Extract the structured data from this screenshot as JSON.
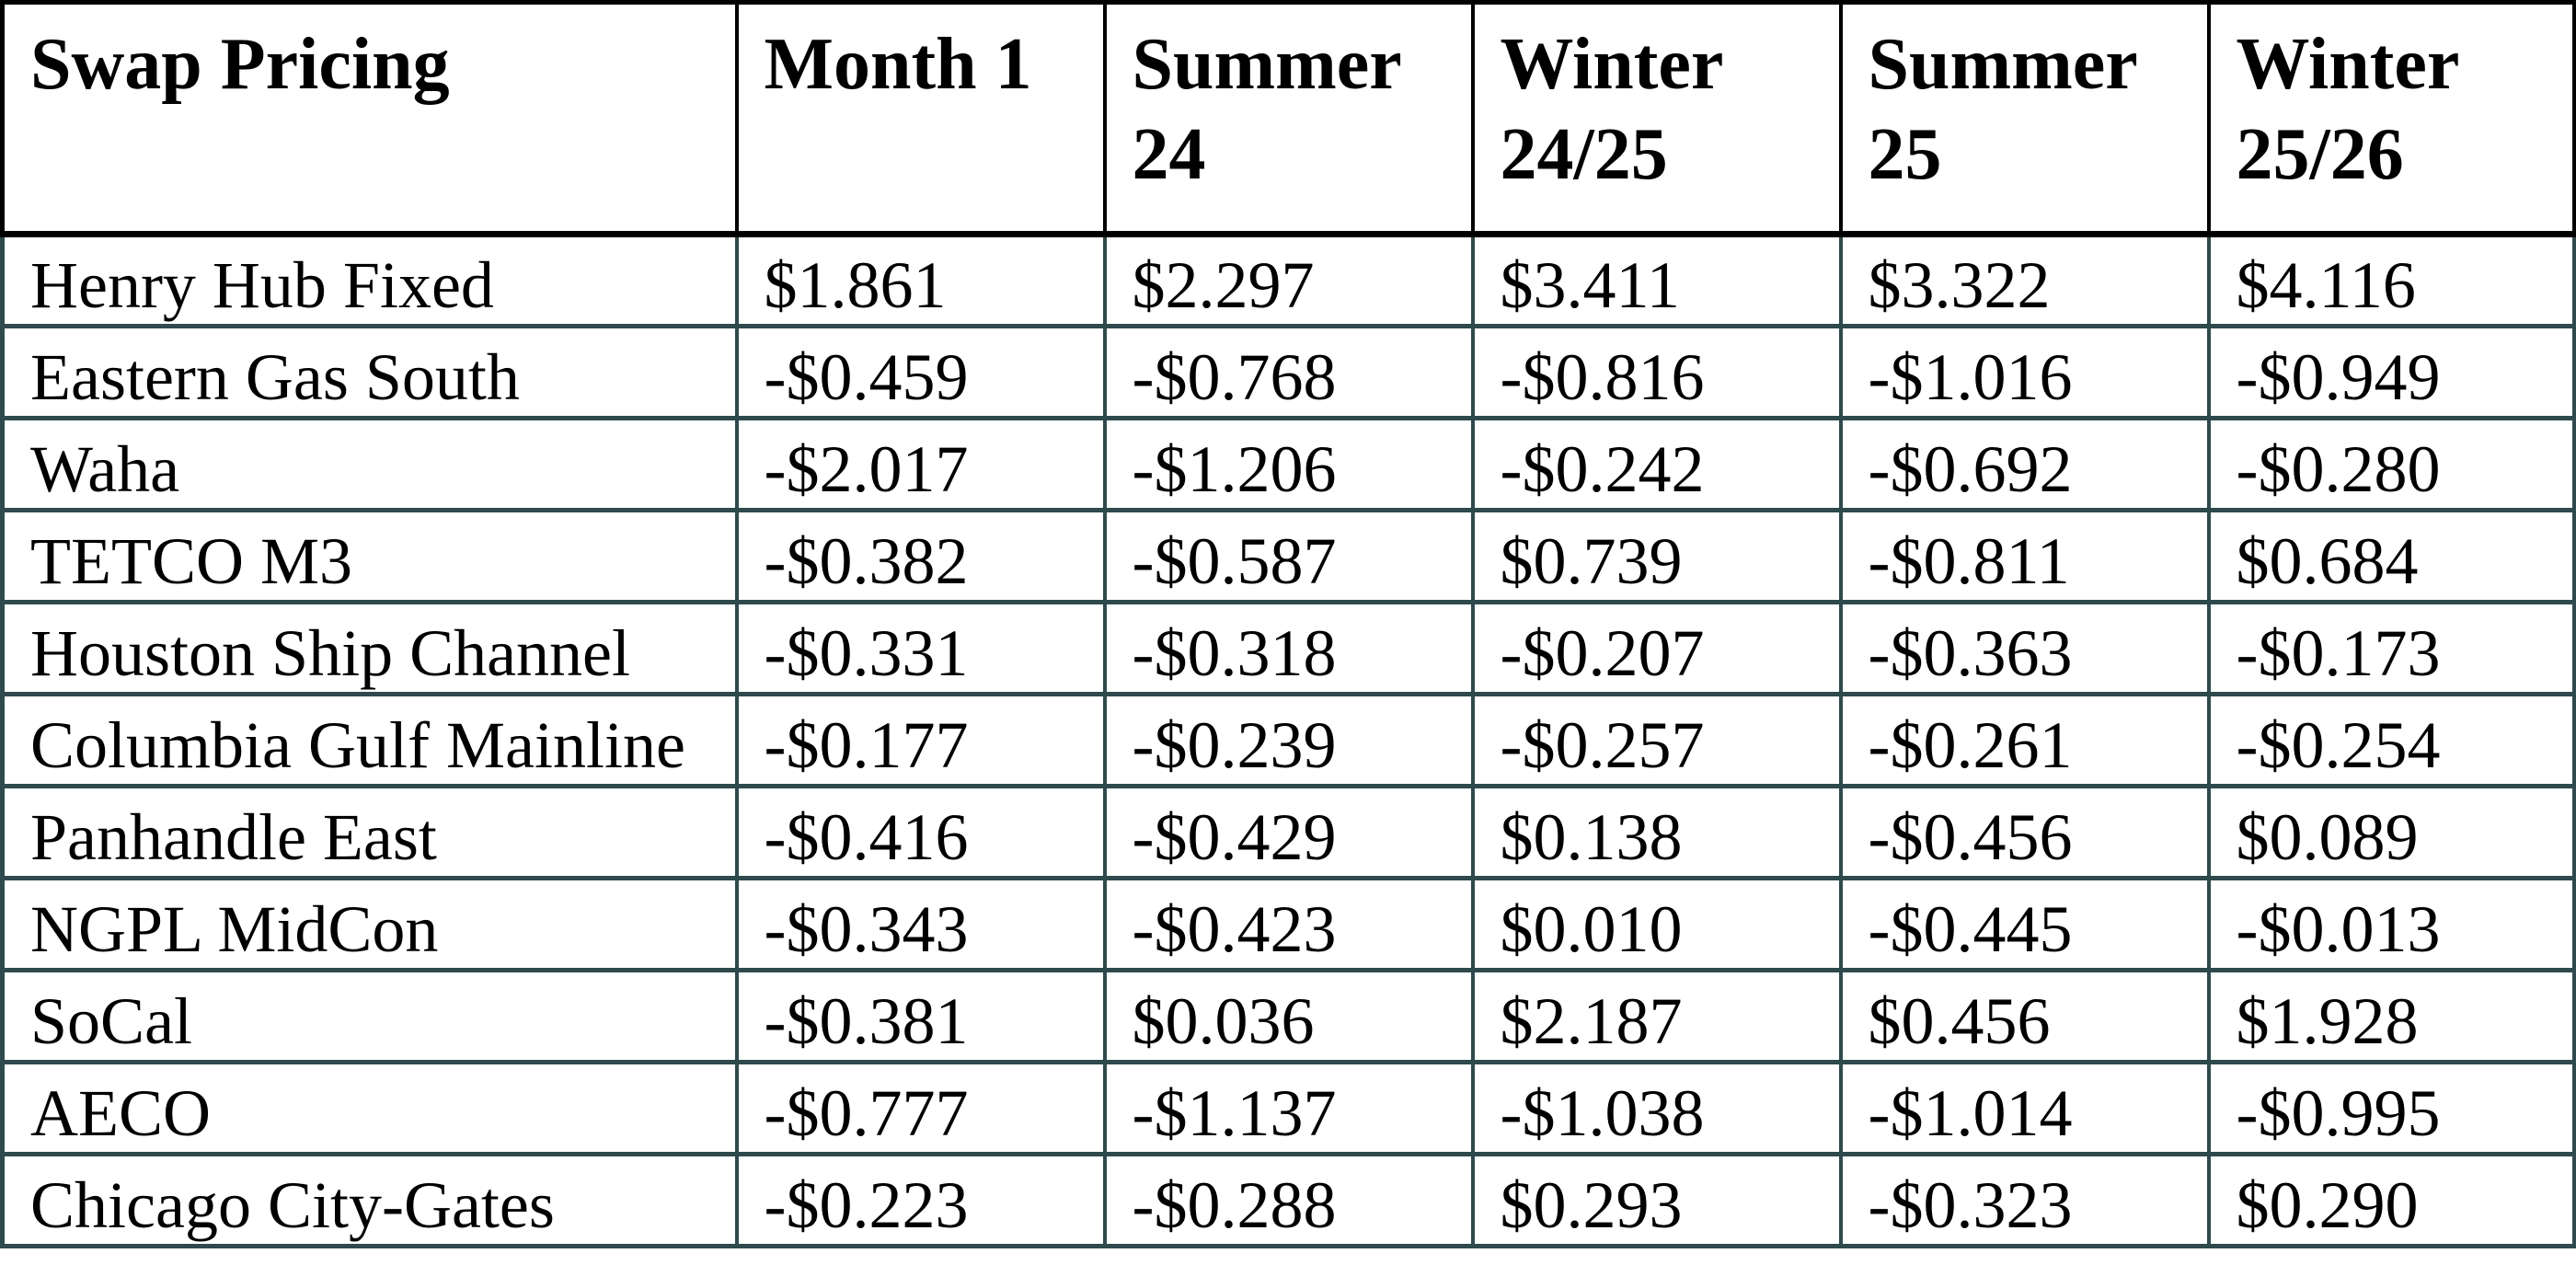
{
  "table": {
    "title_cell": "Swap Pricing",
    "columns": [
      "Swap Pricing",
      "Month 1",
      "Summer 24",
      "Winter 24/25",
      "Summer 25",
      "Winter 25/26"
    ],
    "rows": [
      {
        "label": "Henry Hub Fixed",
        "values": [
          "$1.861",
          "$2.297",
          "$3.411",
          "$3.322",
          "$4.116"
        ]
      },
      {
        "label": "Eastern Gas South",
        "values": [
          "-$0.459",
          "-$0.768",
          "-$0.816",
          "-$1.016",
          "-$0.949"
        ]
      },
      {
        "label": "Waha",
        "values": [
          "-$2.017",
          "-$1.206",
          "-$0.242",
          "-$0.692",
          "-$0.280"
        ]
      },
      {
        "label": "TETCO M3",
        "values": [
          "-$0.382",
          "-$0.587",
          "$0.739",
          "-$0.811",
          "$0.684"
        ]
      },
      {
        "label": "Houston Ship Channel",
        "values": [
          "-$0.331",
          "-$0.318",
          "-$0.207",
          "-$0.363",
          "-$0.173"
        ]
      },
      {
        "label": "Columbia Gulf Mainline",
        "values": [
          "-$0.177",
          "-$0.239",
          "-$0.257",
          "-$0.261",
          "-$0.254"
        ]
      },
      {
        "label": "Panhandle East",
        "values": [
          "-$0.416",
          "-$0.429",
          "$0.138",
          "-$0.456",
          "$0.089"
        ]
      },
      {
        "label": "NGPL MidCon",
        "values": [
          "-$0.343",
          "-$0.423",
          "$0.010",
          "-$0.445",
          "-$0.013"
        ]
      },
      {
        "label": "SoCal",
        "values": [
          "-$0.381",
          "$0.036",
          "$2.187",
          "$0.456",
          "$1.928"
        ]
      },
      {
        "label": "AECO",
        "values": [
          "-$0.777",
          "-$1.137",
          "-$1.038",
          "-$1.014",
          "-$0.995"
        ]
      },
      {
        "label": "Chicago City-Gates",
        "values": [
          "-$0.223",
          "-$0.288",
          "$0.293",
          "-$0.323",
          "$0.290"
        ]
      }
    ]
  },
  "colors": {
    "header_border": "#000000",
    "grid_border": "#2e4a4d",
    "text": "#000000",
    "background": "#ffffff"
  }
}
